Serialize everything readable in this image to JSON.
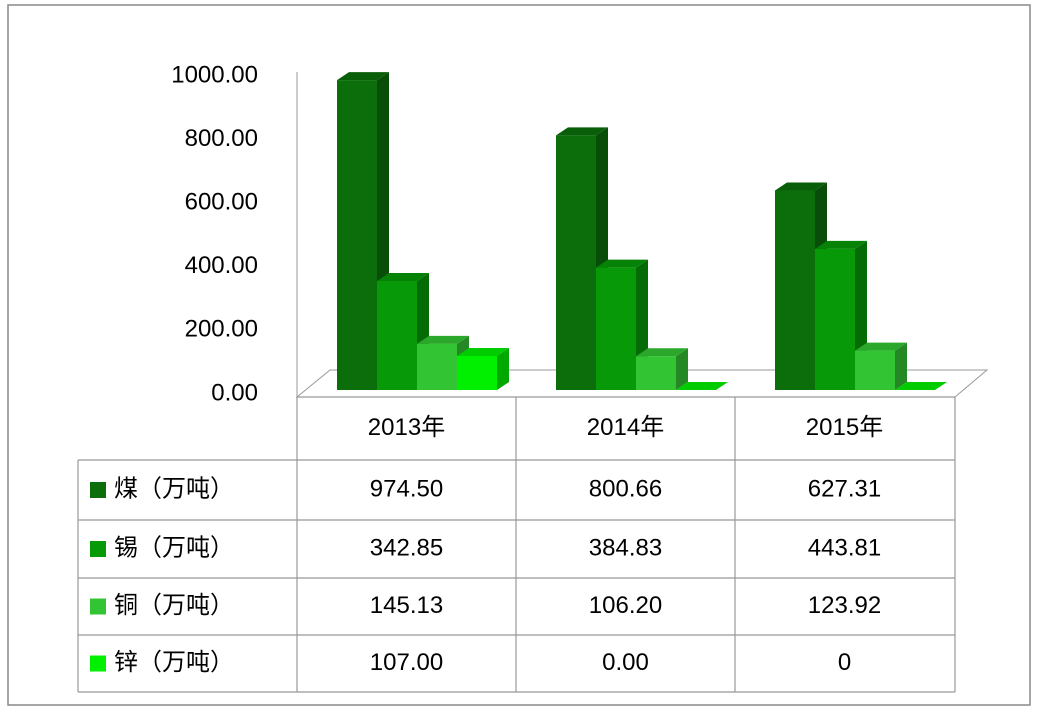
{
  "chart_data": {
    "type": "bar3d",
    "categories": [
      "2013年",
      "2014年",
      "2015年"
    ],
    "series": [
      {
        "name": "煤（万吨）",
        "color": "#0b6e0b",
        "values": [
          974.5,
          800.66,
          627.31
        ],
        "value_labels": [
          "974.50",
          "800.66",
          "627.31"
        ]
      },
      {
        "name": "锡（万吨）",
        "color": "#079907",
        "values": [
          342.85,
          384.83,
          443.81
        ],
        "value_labels": [
          "342.85",
          "384.83",
          "443.81"
        ]
      },
      {
        "name": "铜（万吨）",
        "color": "#33c433",
        "values": [
          145.13,
          106.2,
          123.92
        ],
        "value_labels": [
          "145.13",
          "106.20",
          "123.92"
        ]
      },
      {
        "name": "锌（万吨）",
        "color": "#00f000",
        "values": [
          107,
          0,
          0
        ],
        "value_labels": [
          "107.00",
          "0.00",
          "0"
        ]
      }
    ],
    "ylim": [
      0,
      1000
    ],
    "yticks": [
      {
        "value": 0,
        "label": "0.00"
      },
      {
        "value": 200,
        "label": "200.00"
      },
      {
        "value": 400,
        "label": "400.00"
      },
      {
        "value": 600,
        "label": "600.00"
      },
      {
        "value": 800,
        "label": "800.00"
      },
      {
        "value": 1000,
        "label": "1000.00"
      }
    ]
  }
}
